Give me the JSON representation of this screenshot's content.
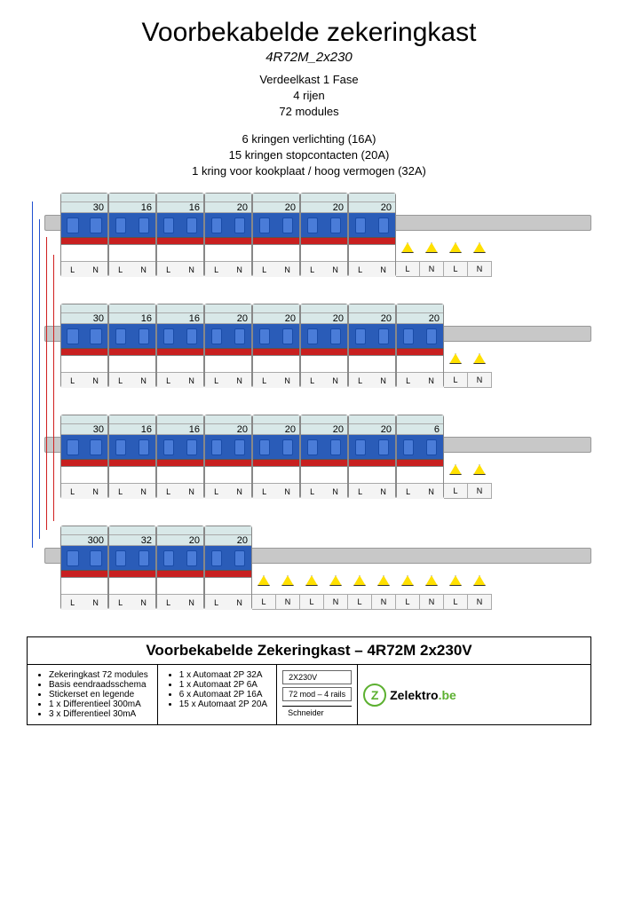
{
  "title": "Voorbekabelde zekeringkast",
  "subtitle": "4R72M_2x230",
  "specs": [
    "Verdeelkast 1 Fase",
    "4 rijen",
    "72 modules"
  ],
  "circuits": [
    "6 kringen verlichting (16A)",
    "15 kringen stopcontacten (20A)",
    "1 kring voor kookplaat / hoog vermogen (32A)"
  ],
  "term_labels": [
    "L",
    "N"
  ],
  "rows": [
    {
      "breakers": [
        30,
        16,
        16,
        20,
        20,
        20,
        20
      ],
      "warn_modules": 4
    },
    {
      "breakers": [
        30,
        16,
        16,
        20,
        20,
        20,
        20,
        20
      ],
      "warn_modules": 2
    },
    {
      "breakers": [
        30,
        16,
        16,
        20,
        20,
        20,
        20,
        6
      ],
      "warn_modules": 2
    },
    {
      "breakers": [
        300,
        32,
        20,
        20
      ],
      "warn_modules": 10
    }
  ],
  "footer": {
    "title": "Voorbekabelde Zekeringkast – 4R72M  2x230V",
    "col1": [
      "Zekeringkast 72 modules",
      "Basis eendraadsschema",
      "Stickerset en legende",
      "1 x Differentieel 300mA",
      "3 x Differentieel 30mA"
    ],
    "col2": [
      "1 x Automaat 2P 32A",
      "1 x Automaat 2P 6A",
      "6 x Automaat 2P 16A",
      "15 x Automaat 2P 20A"
    ],
    "tags": [
      "2X230V",
      "72 mod – 4 rails"
    ],
    "schneider": "Schneider",
    "logo_text": "Zelektro",
    "logo_suffix": ".be"
  },
  "colors": {
    "blue": "#2a5cb8",
    "red": "#c82020",
    "rail": "#c8c8c8",
    "warn": "#ffe000",
    "green": "#5cb030"
  }
}
